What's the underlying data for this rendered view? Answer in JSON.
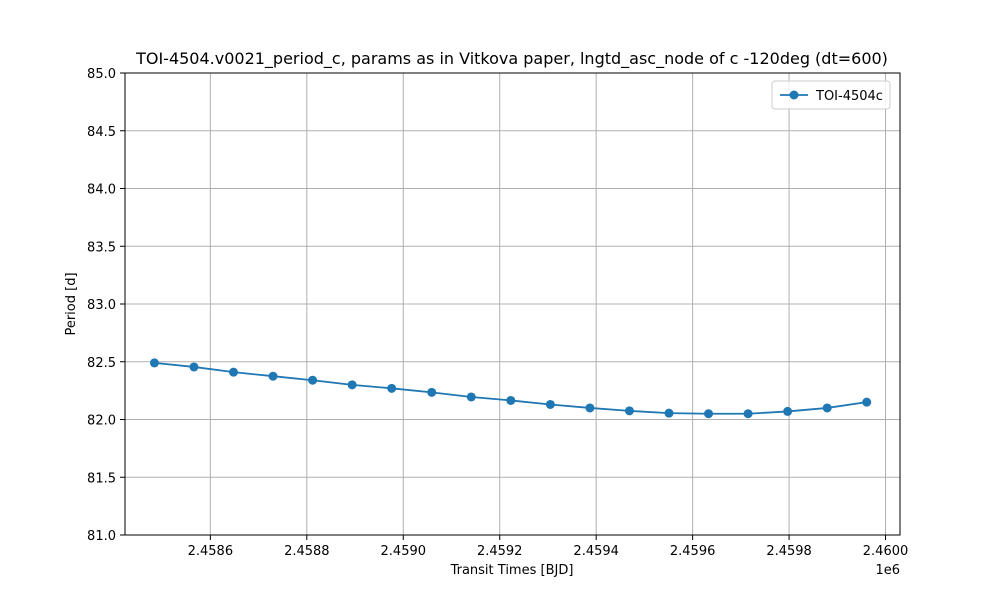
{
  "chart_data": {
    "type": "line",
    "title": "TOI-4504.v0021_period_c, params as in Vitkova paper, lngtd_asc_node of c -120deg (dt=600)",
    "xlabel": "Transit Times [BJD]",
    "ylabel": "Period [d]",
    "x_offset_label": "1e6",
    "xlim": [
      2458423,
      2460030
    ],
    "ylim": [
      81.0,
      85.0
    ],
    "x_ticks": [
      2458600,
      2458800,
      2459000,
      2459200,
      2459400,
      2459600,
      2459800,
      2460000
    ],
    "x_tick_labels": [
      "2.4586",
      "2.4588",
      "2.4590",
      "2.4592",
      "2.4594",
      "2.4596",
      "2.4598",
      "2.4600"
    ],
    "y_ticks": [
      81.0,
      81.5,
      82.0,
      82.5,
      83.0,
      83.5,
      84.0,
      84.5,
      85.0
    ],
    "y_tick_labels": [
      "81.0",
      "81.5",
      "82.0",
      "82.5",
      "83.0",
      "83.5",
      "84.0",
      "84.5",
      "85.0"
    ],
    "grid": true,
    "legend_position": "top-right",
    "series": [
      {
        "name": "TOI-4504c",
        "color": "#1f77b4",
        "marker": "circle",
        "x": [
          2458484,
          2458566,
          2458648,
          2458730,
          2458812,
          2458894,
          2458976,
          2459059,
          2459141,
          2459223,
          2459305,
          2459387,
          2459469,
          2459551,
          2459633,
          2459715,
          2459797,
          2459879,
          2459961
        ],
        "y": [
          82.49,
          82.455,
          82.41,
          82.375,
          82.34,
          82.3,
          82.27,
          82.235,
          82.195,
          82.165,
          82.13,
          82.1,
          82.075,
          82.055,
          82.05,
          82.05,
          82.07,
          82.1,
          82.15
        ]
      }
    ]
  }
}
